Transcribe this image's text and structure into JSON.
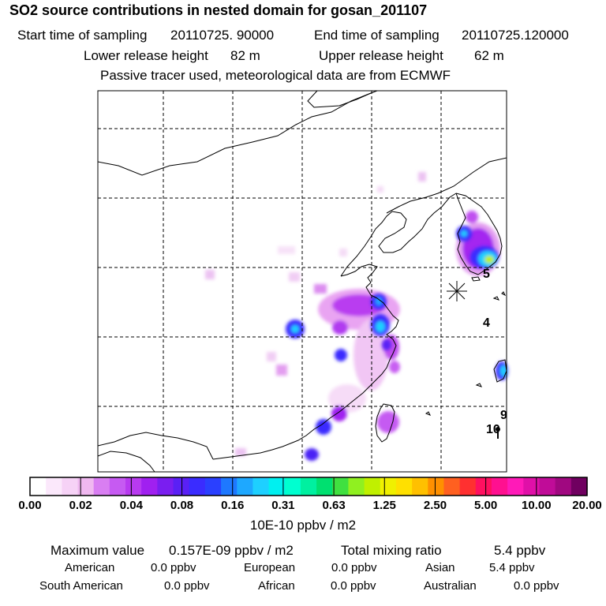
{
  "header": {
    "title": "SO2 source contributions in nested domain for gosan_201107",
    "start_label": "Start time of sampling",
    "start_value": "20110725. 90000",
    "end_label": "End time of sampling",
    "end_value": "20110725.120000",
    "lower_label": "Lower release height",
    "lower_value": "82 m",
    "upper_label": "Upper release height",
    "upper_value": "62 m",
    "note": "Passive tracer used, meteorological data are from ECMWF"
  },
  "map": {
    "receptor_symbol": "station-marker",
    "labels": [
      "5",
      "4",
      "9",
      "10"
    ]
  },
  "colorbar": {
    "colors": [
      "#ffffff",
      "#fbe8fb",
      "#f6d2f6",
      "#f0b8f0",
      "#d97ef2",
      "#c65af2",
      "#b83af0",
      "#a020f0",
      "#7a1ef0",
      "#5a20f5",
      "#3a2cff",
      "#2a40ff",
      "#1e78ff",
      "#1ea8ff",
      "#1ed0ff",
      "#00f0f0",
      "#00ffd0",
      "#00f0a0",
      "#00e070",
      "#40e040",
      "#90f020",
      "#c0f000",
      "#f0f000",
      "#ffe000",
      "#ffc000",
      "#ff9000",
      "#ff6020",
      "#ff3030",
      "#ff1060",
      "#ff1090",
      "#ff1ab8",
      "#e010a8",
      "#c00c98",
      "#a00880",
      "#700060"
    ],
    "ticks": [
      "0.00",
      "0.02",
      "0.04",
      "0.08",
      "0.16",
      "0.31",
      "0.63",
      "1.25",
      "2.50",
      "5.00",
      "10.00",
      "20.00"
    ],
    "unit": "10E-10 ppbv / m2"
  },
  "summary": {
    "max_label": "Maximum value",
    "max_value": "0.157E-09 ppbv / m2",
    "total_label": "Total mixing ratio",
    "total_value": "5.4 ppbv",
    "regions": [
      {
        "name": "American",
        "value": "0.0 ppbv"
      },
      {
        "name": "European",
        "value": "0.0 ppbv"
      },
      {
        "name": "Asian",
        "value": "5.4 ppbv"
      },
      {
        "name": "South American",
        "value": "0.0 ppbv"
      },
      {
        "name": "African",
        "value": "0.0 ppbv"
      },
      {
        "name": "Australian",
        "value": "0.0 ppbv"
      }
    ]
  }
}
